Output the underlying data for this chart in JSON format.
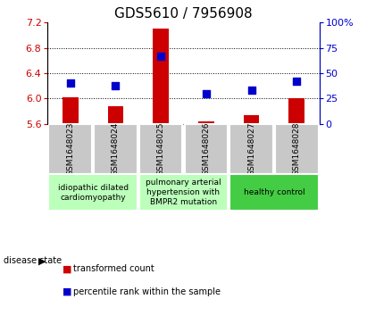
{
  "title": "GDS5610 / 7956908",
  "samples": [
    "GSM1648023",
    "GSM1648024",
    "GSM1648025",
    "GSM1648026",
    "GSM1648027",
    "GSM1648028"
  ],
  "transformed_count": [
    6.02,
    5.88,
    7.1,
    5.63,
    5.73,
    6.0
  ],
  "percentile_rank": [
    40,
    38,
    67,
    30,
    33,
    42
  ],
  "ylim_left": [
    5.6,
    7.2
  ],
  "yticks_left": [
    5.6,
    6.0,
    6.4,
    6.8,
    7.2
  ],
  "ylim_right": [
    0,
    100
  ],
  "yticks_right": [
    0,
    25,
    50,
    75,
    100
  ],
  "ytick_labels_right": [
    "0",
    "25",
    "50",
    "75",
    "100%"
  ],
  "bar_color": "#cc0000",
  "bar_baseline": 5.6,
  "dot_color": "#0000cc",
  "dot_size": 30,
  "disease_groups": [
    {
      "label": "idiopathic dilated\ncardiomyopathy",
      "samples": [
        0,
        1
      ],
      "color": "#bbffbb"
    },
    {
      "label": "pulmonary arterial\nhypertension with\nBMPR2 mutation",
      "samples": [
        2,
        3
      ],
      "color": "#bbffbb"
    },
    {
      "label": "healthy control",
      "samples": [
        4,
        5
      ],
      "color": "#44cc44"
    }
  ],
  "sample_box_color": "#c8c8c8",
  "legend_red_label": "transformed count",
  "legend_blue_label": "percentile rank within the sample",
  "disease_state_label": "disease state",
  "title_fontsize": 11,
  "tick_fontsize": 8,
  "sample_label_fontsize": 6.5,
  "disease_label_fontsize": 6.5,
  "legend_fontsize": 7
}
